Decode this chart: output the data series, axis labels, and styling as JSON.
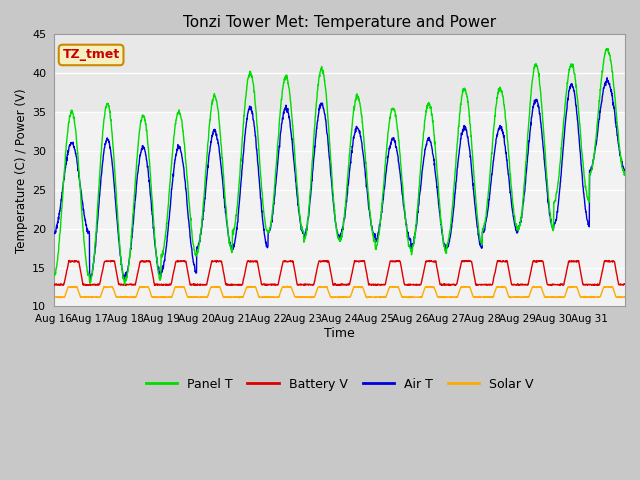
{
  "title": "Tonzi Tower Met: Temperature and Power",
  "xlabel": "Time",
  "ylabel": "Temperature (C) / Power (V)",
  "ylim": [
    10,
    45
  ],
  "yticks": [
    10,
    15,
    20,
    25,
    30,
    35,
    40,
    45
  ],
  "annotation_text": "TZ_tmet",
  "annotation_color": "#cc0000",
  "annotation_bg": "#f5f0c0",
  "annotation_border": "#cc8800",
  "fig_bg": "#c8c8c8",
  "plot_bg": "#e0e0e0",
  "inner_bg": "#f2f2f2",
  "upper_band_bg": "#e8e8e8",
  "grid_color": "#ffffff",
  "line_colors": {
    "panel": "#00dd00",
    "battery": "#dd0000",
    "air": "#0000dd",
    "solar": "#ffaa00"
  },
  "legend_labels": [
    "Panel T",
    "Battery V",
    "Air T",
    "Solar V"
  ],
  "xtick_labels": [
    "Aug 16",
    "Aug 17",
    "Aug 18",
    "Aug 19",
    "Aug 20",
    "Aug 21",
    "Aug 22",
    "Aug 23",
    "Aug 24",
    "Aug 25",
    "Aug 26",
    "Aug 27",
    "Aug 28",
    "Aug 29",
    "Aug 30",
    "Aug 31"
  ],
  "n_days": 16,
  "points_per_day": 144,
  "panel_peaks": [
    35.0,
    36.0,
    34.5,
    35.0,
    37.0,
    40.0,
    39.5,
    40.5,
    37.0,
    35.5,
    36.0,
    38.0,
    38.0,
    41.0,
    41.0,
    43.0
  ],
  "panel_mins": [
    14.0,
    13.0,
    13.5,
    16.5,
    17.0,
    19.5,
    19.5,
    18.5,
    18.5,
    17.5,
    17.0,
    18.0,
    20.0,
    20.0,
    23.5,
    27.0
  ],
  "air_peaks": [
    31.0,
    31.5,
    30.5,
    30.5,
    32.5,
    35.5,
    35.5,
    36.0,
    33.0,
    31.5,
    31.5,
    33.0,
    33.0,
    36.5,
    38.5,
    39.0
  ],
  "air_mins": [
    19.5,
    13.5,
    14.0,
    14.5,
    17.5,
    17.5,
    19.5,
    19.0,
    19.0,
    18.5,
    17.5,
    17.5,
    19.5,
    20.0,
    20.5,
    27.5
  ],
  "batt_base": 12.8,
  "batt_peak": 3.0,
  "solar_base": 11.2,
  "solar_peak": 1.3
}
